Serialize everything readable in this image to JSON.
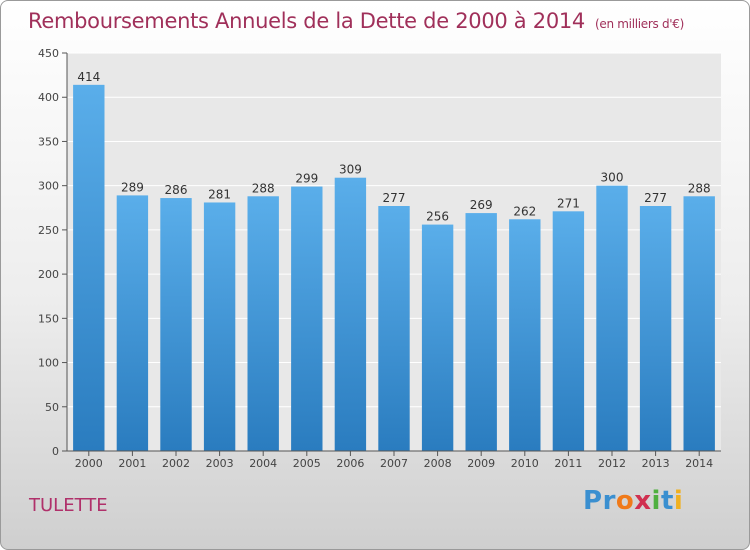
{
  "chart_data": {
    "type": "bar",
    "title": "Remboursements Annuels de la Dette de 2000 à 2014",
    "subtitle": "(en milliers d'€)",
    "xlabel": "",
    "ylabel": "",
    "categories": [
      "2000",
      "2001",
      "2002",
      "2003",
      "2004",
      "2005",
      "2006",
      "2007",
      "2008",
      "2009",
      "2010",
      "2011",
      "2012",
      "2013",
      "2014"
    ],
    "values": [
      414,
      289,
      286,
      281,
      288,
      299,
      309,
      277,
      256,
      269,
      262,
      271,
      300,
      277,
      288
    ],
    "ylim": [
      0,
      450
    ],
    "yticks": [
      0,
      50,
      100,
      150,
      200,
      250,
      300,
      350,
      400,
      450
    ],
    "grid": true,
    "legend": "none",
    "bar_color_top": "#5aaeea",
    "bar_color_bottom": "#2a7cbf"
  },
  "location": "TULETTE",
  "logo": {
    "text": "Proxiti",
    "letters": [
      "P",
      "r",
      "o",
      "x",
      "i",
      "t",
      "i"
    ],
    "colors": [
      "#3a8fd0",
      "#3a8fd0",
      "#f07a1a",
      "#d03050",
      "#50b040",
      "#3a8fd0",
      "#f0b020"
    ]
  },
  "colors": {
    "title": "#a0305a",
    "location": "#b0306a",
    "plot_background": "#e8e8e8",
    "grid": "#ffffff"
  }
}
